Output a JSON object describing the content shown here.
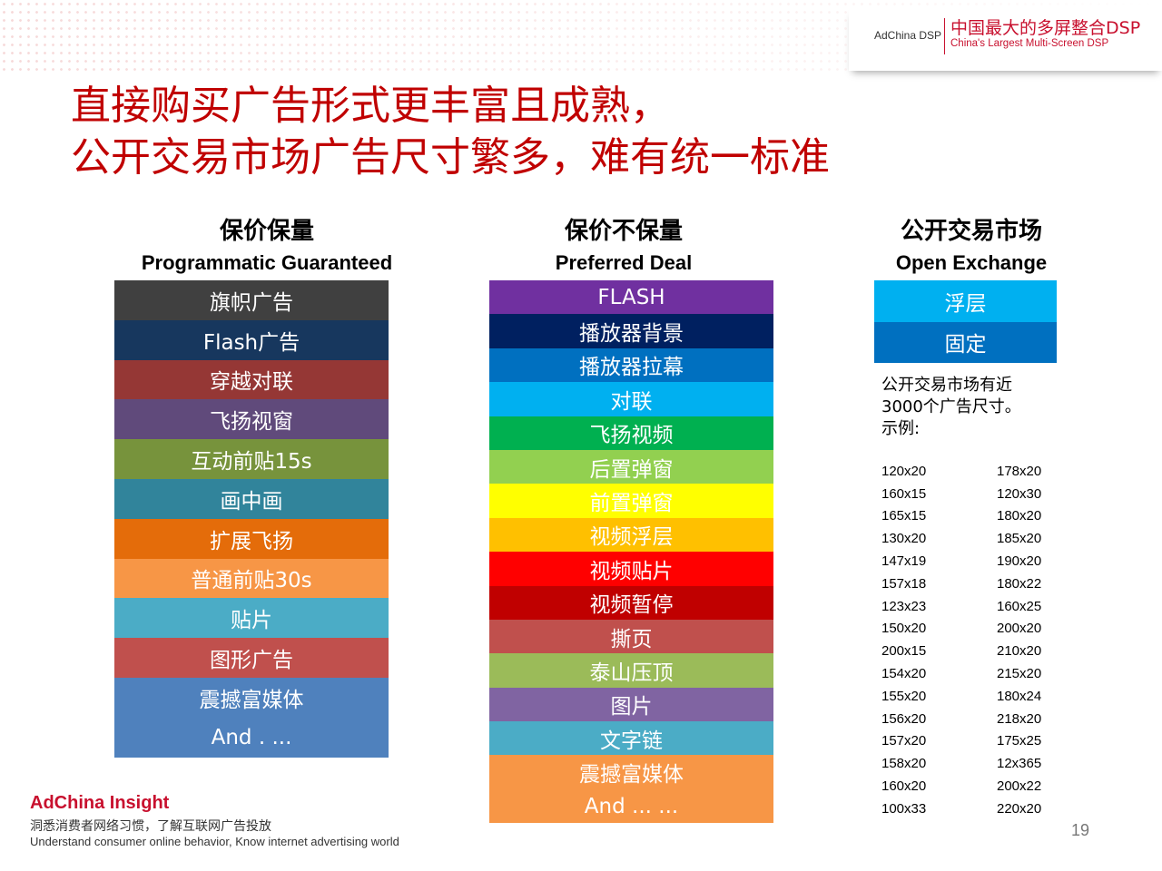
{
  "header": {
    "brand_left": "AdChina DSP",
    "brand_cn": "中国最大的多屏整合DSP",
    "brand_en": "China's Largest Multi-Screen DSP"
  },
  "title": {
    "line1": "直接购买广告形式更丰富且成熟，",
    "line2": "公开交易市场广告尺寸繁多，难有统一标准"
  },
  "columns": [
    {
      "title_cn": "保价保量",
      "title_en": "Programmatic Guaranteed",
      "items": [
        {
          "label": "旗帜广告",
          "color": "#404040"
        },
        {
          "label": "Flash广告",
          "color": "#17375e"
        },
        {
          "label": "穿越对联",
          "color": "#953735"
        },
        {
          "label": "飞扬视窗",
          "color": "#604a7b"
        },
        {
          "label": "互动前贴15s",
          "color": "#77933c"
        },
        {
          "label": "画中画",
          "color": "#31849b"
        },
        {
          "label": "扩展飞扬",
          "color": "#e46c0a"
        },
        {
          "label": "普通前贴30s",
          "color": "#f79646"
        },
        {
          "label": "贴片",
          "color": "#4bacc6"
        },
        {
          "label": "图形广告",
          "color": "#c0504d"
        },
        {
          "label": "震撼富媒体",
          "color": "#4f81bd"
        },
        {
          "label": "And . ...",
          "color": "#4f81bd"
        }
      ]
    },
    {
      "title_cn": "保价不保量",
      "title_en": "Preferred Deal",
      "items": [
        {
          "label": "FLASH",
          "color": "#7030a0"
        },
        {
          "label": "播放器背景",
          "color": "#002060"
        },
        {
          "label": "播放器拉幕",
          "color": "#0070c0"
        },
        {
          "label": "对联",
          "color": "#00b0f0"
        },
        {
          "label": "飞扬视频",
          "color": "#00b050"
        },
        {
          "label": "后置弹窗",
          "color": "#92d050"
        },
        {
          "label": "前置弹窗",
          "color": "#ffff00"
        },
        {
          "label": "视频浮层",
          "color": "#ffc000"
        },
        {
          "label": "视频贴片",
          "color": "#ff0000"
        },
        {
          "label": "视频暂停",
          "color": "#c00000"
        },
        {
          "label": "撕页",
          "color": "#c0504d"
        },
        {
          "label": "泰山压顶",
          "color": "#9bbb59"
        },
        {
          "label": "图片",
          "color": "#8064a2"
        },
        {
          "label": "文字链",
          "color": "#4bacc6"
        },
        {
          "label": "震撼富媒体",
          "color": "#f79646"
        },
        {
          "label": "And ... ...",
          "color": "#f79646"
        }
      ]
    },
    {
      "title_cn": "公开交易市场",
      "title_en": "Open Exchange",
      "items": [
        {
          "label": "浮层",
          "color": "#00b0f0"
        },
        {
          "label": "固定",
          "color": "#0070c0"
        }
      ]
    }
  ],
  "open_exchange_note": {
    "line1": "公开交易市场有近",
    "line2": "3000个广告尺寸。",
    "line3": "示例:"
  },
  "ad_sizes": [
    [
      "120x20",
      "178x20"
    ],
    [
      "160x15",
      "120x30"
    ],
    [
      "165x15",
      "180x20"
    ],
    [
      "130x20",
      "185x20"
    ],
    [
      "147x19",
      "190x20"
    ],
    [
      "157x18",
      "180x22"
    ],
    [
      "123x23",
      "160x25"
    ],
    [
      "150x20",
      "200x20"
    ],
    [
      "200x15",
      "210x20"
    ],
    [
      "154x20",
      "215x20"
    ],
    [
      "155x20",
      "180x24"
    ],
    [
      "156x20",
      "218x20"
    ],
    [
      "157x20",
      "175x25"
    ],
    [
      "158x20",
      "12x365"
    ],
    [
      "160x20",
      "200x22"
    ],
    [
      "100x33",
      "220x20"
    ]
  ],
  "footer": {
    "insight_name": "AdChina Insight",
    "insight_cn": "洞悉消费者网络习惯，了解互联网广告投放",
    "insight_en": "Understand consumer online behavior, Know internet advertising world",
    "page_number": "19"
  }
}
